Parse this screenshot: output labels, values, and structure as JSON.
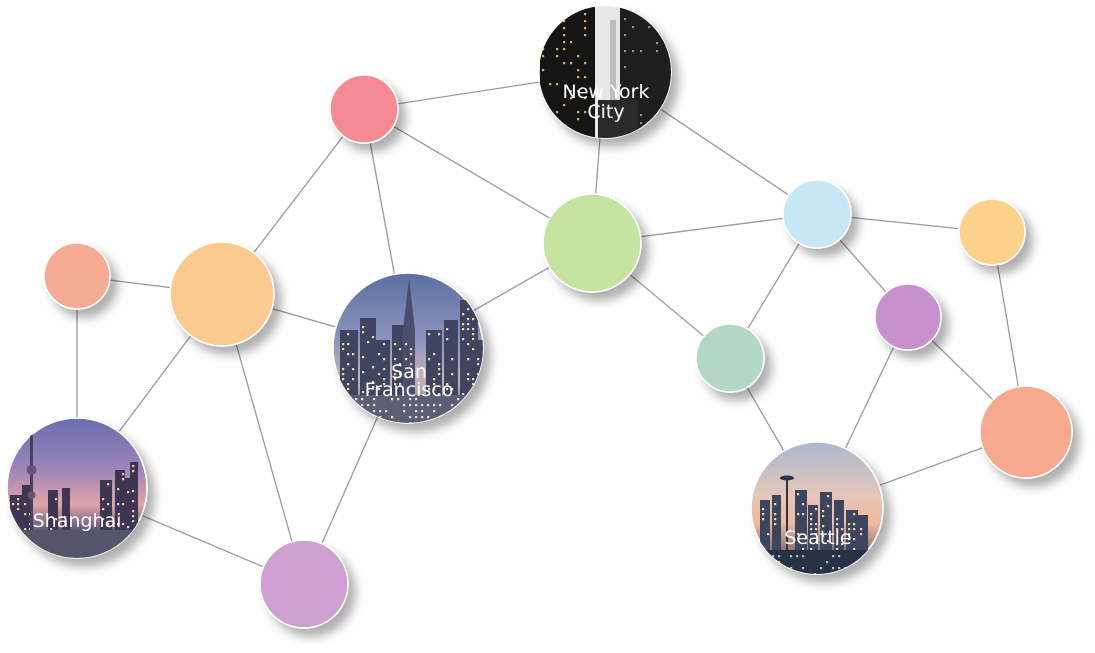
{
  "graph": {
    "nodes": [
      {
        "id": "nyc",
        "kind": "city",
        "label_lines": [
          "New York",
          "City"
        ],
        "theme": "night-skyscrapers"
      },
      {
        "id": "red",
        "kind": "plain",
        "color": "#f48a94"
      },
      {
        "id": "green",
        "kind": "plain",
        "color": "#c5e3a1"
      },
      {
        "id": "lightblue",
        "kind": "plain",
        "color": "#c7e7f6"
      },
      {
        "id": "yellow-right",
        "kind": "plain",
        "color": "#fcd28a"
      },
      {
        "id": "salmon-left",
        "kind": "plain",
        "color": "#f5ac92"
      },
      {
        "id": "orange-big",
        "kind": "plain",
        "color": "#fcca8f"
      },
      {
        "id": "sf",
        "kind": "city",
        "label_lines": [
          "San",
          "Francisco"
        ],
        "theme": "dusk-skyline"
      },
      {
        "id": "teal",
        "kind": "plain",
        "color": "#b3d9c5"
      },
      {
        "id": "purple-right",
        "kind": "plain",
        "color": "#c791cd"
      },
      {
        "id": "shanghai",
        "kind": "city",
        "label_lines": [
          "Shanghai"
        ],
        "theme": "sunset-skyline"
      },
      {
        "id": "purple-bottom",
        "kind": "plain",
        "color": "#cf9fd1"
      },
      {
        "id": "seattle",
        "kind": "city",
        "label_lines": [
          "Seattle"
        ],
        "theme": "dawn-skyline"
      },
      {
        "id": "salmon-big",
        "kind": "plain",
        "color": "#f6a98f"
      }
    ],
    "edges": [
      [
        "red",
        "nyc"
      ],
      [
        "red",
        "green"
      ],
      [
        "red",
        "orange-big"
      ],
      [
        "red",
        "sf"
      ],
      [
        "nyc",
        "green"
      ],
      [
        "nyc",
        "lightblue"
      ],
      [
        "green",
        "lightblue"
      ],
      [
        "green",
        "sf"
      ],
      [
        "green",
        "teal"
      ],
      [
        "lightblue",
        "yellow-right"
      ],
      [
        "lightblue",
        "teal"
      ],
      [
        "lightblue",
        "purple-right"
      ],
      [
        "yellow-right",
        "salmon-big"
      ],
      [
        "purple-right",
        "salmon-big"
      ],
      [
        "purple-right",
        "seattle"
      ],
      [
        "teal",
        "seattle"
      ],
      [
        "seattle",
        "salmon-big"
      ],
      [
        "salmon-left",
        "orange-big"
      ],
      [
        "salmon-left",
        "shanghai"
      ],
      [
        "orange-big",
        "sf"
      ],
      [
        "orange-big",
        "shanghai"
      ],
      [
        "orange-big",
        "purple-bottom"
      ],
      [
        "shanghai",
        "purple-bottom"
      ],
      [
        "sf",
        "purple-bottom"
      ]
    ]
  }
}
